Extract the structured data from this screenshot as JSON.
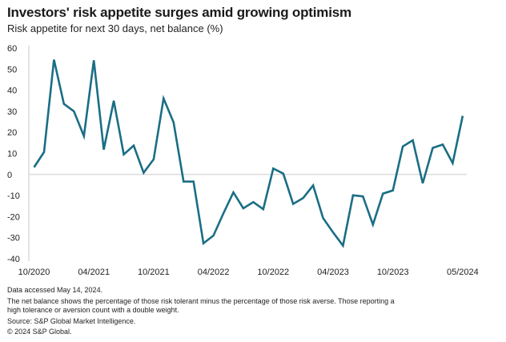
{
  "chart_data": {
    "type": "line",
    "title": "Investors' risk appetite surges amid growing optimism",
    "subtitle": "Risk appetite for next 30 days, net balance (%)",
    "xlabel": "",
    "ylabel": "",
    "ylim": [
      -40,
      60
    ],
    "yticks": [
      60,
      50,
      40,
      30,
      20,
      10,
      0,
      -10,
      -20,
      -30,
      -40
    ],
    "xtick_labels": [
      {
        "label": "10/2020",
        "index": 0
      },
      {
        "label": "04/2021",
        "index": 6
      },
      {
        "label": "10/2021",
        "index": 12
      },
      {
        "label": "04/2022",
        "index": 18
      },
      {
        "label": "10/2022",
        "index": 24
      },
      {
        "label": "04/2023",
        "index": 30
      },
      {
        "label": "10/2023",
        "index": 36
      },
      {
        "label": "05/2024",
        "index": 43
      }
    ],
    "grid": false,
    "zero_line": true,
    "series": [
      {
        "name": "Risk appetite net balance",
        "color": "#1a6e85",
        "x": [
          "10/2020",
          "11/2020",
          "12/2020",
          "01/2021",
          "02/2021",
          "03/2021",
          "04/2021",
          "05/2021",
          "06/2021",
          "07/2021",
          "08/2021",
          "09/2021",
          "10/2021",
          "11/2021",
          "12/2021",
          "01/2022",
          "02/2022",
          "03/2022",
          "04/2022",
          "05/2022",
          "06/2022",
          "07/2022",
          "08/2022",
          "09/2022",
          "10/2022",
          "11/2022",
          "12/2022",
          "01/2023",
          "02/2023",
          "03/2023",
          "04/2023",
          "05/2023",
          "06/2023",
          "07/2023",
          "08/2023",
          "09/2023",
          "10/2023",
          "11/2023",
          "12/2023",
          "01/2024",
          "02/2024",
          "03/2024",
          "04/2024",
          "05/2024"
        ],
        "values": [
          3.4,
          10.6,
          54.5,
          33.5,
          30,
          18.2,
          54.2,
          11.8,
          35,
          9.5,
          13.7,
          0.8,
          7.2,
          36.1,
          24.7,
          -3.4,
          -3.4,
          -32.7,
          -29,
          -18.5,
          -8.5,
          -16.1,
          -13.1,
          -16.5,
          2.8,
          0.4,
          -14,
          -11.2,
          -5.2,
          -20.7,
          -27.5,
          -33.8,
          -9.9,
          -10.4,
          -23.8,
          -9.1,
          -7.6,
          13.3,
          16.2,
          -4.2,
          12.6,
          14.2,
          5.4,
          27.8
        ]
      }
    ]
  },
  "notes": {
    "accessed": "Data accessed May 14, 2024.",
    "definition": "The net balance shows the percentage of those risk tolerant minus the percentage of those risk averse. Those reporting a high tolerance or aversion count with a double weight.",
    "source": "Source: S&P Global Market Intelligence.",
    "copyright": "© 2024 S&P Global."
  }
}
